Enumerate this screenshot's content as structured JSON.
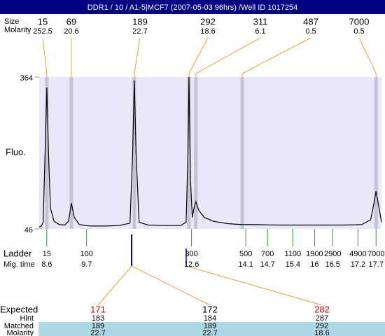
{
  "chart_data": {
    "type": "line",
    "title": "DDR1 / 10 / A1-5|MCF7 (2007-05-03 96hrs) /Well ID 1017254",
    "y_label": "Fluo.",
    "ylim": [
      46,
      364
    ],
    "yticks": [
      46,
      364
    ],
    "xlim": [
      8.39,
      17.85
    ],
    "x": [
      8.39,
      8.45,
      8.5,
      8.55,
      8.6,
      8.65,
      8.7,
      8.8,
      8.95,
      9.1,
      9.2,
      9.28,
      9.36,
      9.5,
      9.8,
      10.2,
      10.6,
      10.9,
      10.97,
      11.02,
      11.07,
      11.15,
      11.4,
      11.9,
      12.3,
      12.45,
      12.5,
      12.53,
      12.57,
      12.62,
      12.67,
      12.72,
      12.8,
      12.95,
      13.2,
      13.6,
      14.0,
      14.4,
      15.0,
      15.6,
      16.2,
      16.8,
      17.3,
      17.55,
      17.63,
      17.7,
      17.77,
      17.85
    ],
    "series": [
      {
        "color": "#000000",
        "values": [
          50,
          52,
          60,
          200,
          342,
          200,
          90,
          62,
          55,
          54,
          62,
          100,
          70,
          55,
          52,
          52,
          53,
          58,
          200,
          357,
          200,
          60,
          54,
          53,
          53,
          60,
          200,
          364,
          150,
          70,
          90,
          103,
          85,
          70,
          62,
          57,
          55,
          55,
          54,
          54,
          54,
          54,
          55,
          65,
          95,
          125,
          95,
          60
        ]
      }
    ],
    "peaks": {
      "size_label": "Size",
      "molarity_label": "Molarity",
      "sizes": [
        15,
        69,
        189,
        292,
        311,
        487,
        7000
      ],
      "molarity": [
        252.5,
        20.6,
        22.7,
        18.6,
        6.1,
        0.5,
        0.5
      ],
      "times": [
        8.6,
        9.28,
        11.02,
        12.53,
        12.72,
        14.0,
        17.7
      ]
    },
    "ladder": {
      "label": "Ladder",
      "time_label": "Mig. time",
      "sizes": [
        15,
        100,
        300,
        500,
        700,
        1100,
        1900,
        2900,
        4900,
        7000
      ],
      "times": [
        8.6,
        9.7,
        12.6,
        14.1,
        14.7,
        15.4,
        16,
        16.5,
        17.2,
        17.7
      ]
    },
    "expected": {
      "label": "Expected",
      "hint_label": "Hint",
      "matched_label": "Matched",
      "molarity_label": "Molarity",
      "values": [
        171,
        172,
        282
      ],
      "colors": [
        "#e00000",
        "#000000",
        "#e00000"
      ],
      "hint": [
        183,
        184,
        287
      ],
      "matched": [
        189,
        189,
        292
      ],
      "molarity": [
        22.7,
        22.7,
        18.6
      ]
    }
  }
}
